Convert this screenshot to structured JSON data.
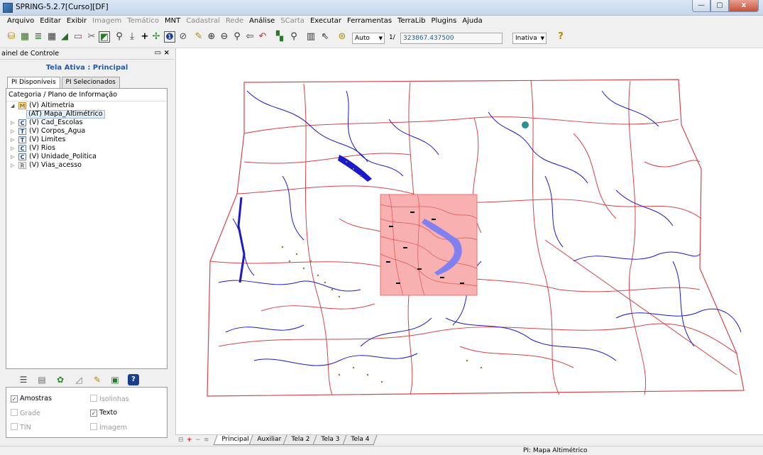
{
  "window": {
    "title": "SPRING-5.2.7[Curso][DF]",
    "min": "—",
    "max": "▢",
    "close": "x"
  },
  "menu": [
    {
      "label": "Arquivo",
      "enabled": true
    },
    {
      "label": "Editar",
      "enabled": true
    },
    {
      "label": "Exibir",
      "enabled": true
    },
    {
      "label": "Imagem",
      "enabled": false
    },
    {
      "label": "Temático",
      "enabled": false
    },
    {
      "label": "MNT",
      "enabled": true
    },
    {
      "label": "Cadastral",
      "enabled": false
    },
    {
      "label": "Rede",
      "enabled": false
    },
    {
      "label": "Análise",
      "enabled": true
    },
    {
      "label": "SCarta",
      "enabled": false
    },
    {
      "label": "Executar",
      "enabled": true
    },
    {
      "label": "Ferramentas",
      "enabled": true
    },
    {
      "label": "TerraLib",
      "enabled": true
    },
    {
      "label": "Plugins",
      "enabled": true
    },
    {
      "label": "Ajuda",
      "enabled": true
    }
  ],
  "toolbar": {
    "icons": [
      "database-icon",
      "project-icon",
      "layers-icon",
      "grid-icon",
      "draw-icon",
      "screen-icon",
      "cut-icon",
      "display-icon",
      "zoom-in-icon",
      "pan-icon",
      "plus-icon",
      "cursor-icon",
      "info-icon",
      "measure-icon",
      "edit-icon",
      "zoom-area-icon",
      "zoom-out-icon",
      "zoom-previous-icon",
      "back-icon",
      "undo-icon",
      "scale-icon",
      "zoom-tool-icon",
      "grid-tool-icon",
      "pointer-icon",
      "scope-icon"
    ],
    "scale_mode": "Auto",
    "scale_prefix": "1/",
    "scale_value": "323867.437500",
    "cursor_mode": "Inativa",
    "help_icon": "?"
  },
  "panel": {
    "title": "ainel de Controle",
    "active_screen": "Tela Ativa : Principal",
    "tabs": [
      "PI Disponíveis",
      "PI Selecionados"
    ],
    "tree_header": "Categoria / Plano de Informação",
    "categories": [
      {
        "badge": "M",
        "label": "(V) Altimetria",
        "expanded": true
      },
      {
        "badge": "C",
        "label": "(V) Cad_Escolas",
        "expanded": false
      },
      {
        "badge": "T",
        "label": "(V) Corpos_Agua",
        "expanded": false
      },
      {
        "badge": "T",
        "label": "(V) Limites",
        "expanded": false
      },
      {
        "badge": "C",
        "label": "(V) Rios",
        "expanded": false
      },
      {
        "badge": "C",
        "label": "(V) Unidade_Politica",
        "expanded": false
      },
      {
        "badge": "R",
        "label": "(V) Vias_acesso",
        "expanded": false
      }
    ],
    "selected_pi": "(AT) Mapa_Altimétrico",
    "checks": [
      {
        "label": "Amostras",
        "checked": true,
        "enabled": true
      },
      {
        "label": "Isolinhas",
        "checked": false,
        "enabled": false
      },
      {
        "label": "Grade",
        "checked": false,
        "enabled": false
      },
      {
        "label": "Texto",
        "checked": true,
        "enabled": true
      },
      {
        "label": "TIN",
        "checked": false,
        "enabled": false
      },
      {
        "label": "Imagem",
        "checked": false,
        "enabled": false
      }
    ]
  },
  "screen_tabs": [
    "Principal",
    "Auxiliar",
    "Tela 2",
    "Tela 3",
    "Tela 4"
  ],
  "status": {
    "pi": "PI: Mapa Altimétrico"
  },
  "colors": {
    "rivers": "#1a1ac8",
    "roads": "#d4444a",
    "lake": "#8080f0",
    "isolines": "#f07070",
    "schools": "#8a7a3a"
  }
}
